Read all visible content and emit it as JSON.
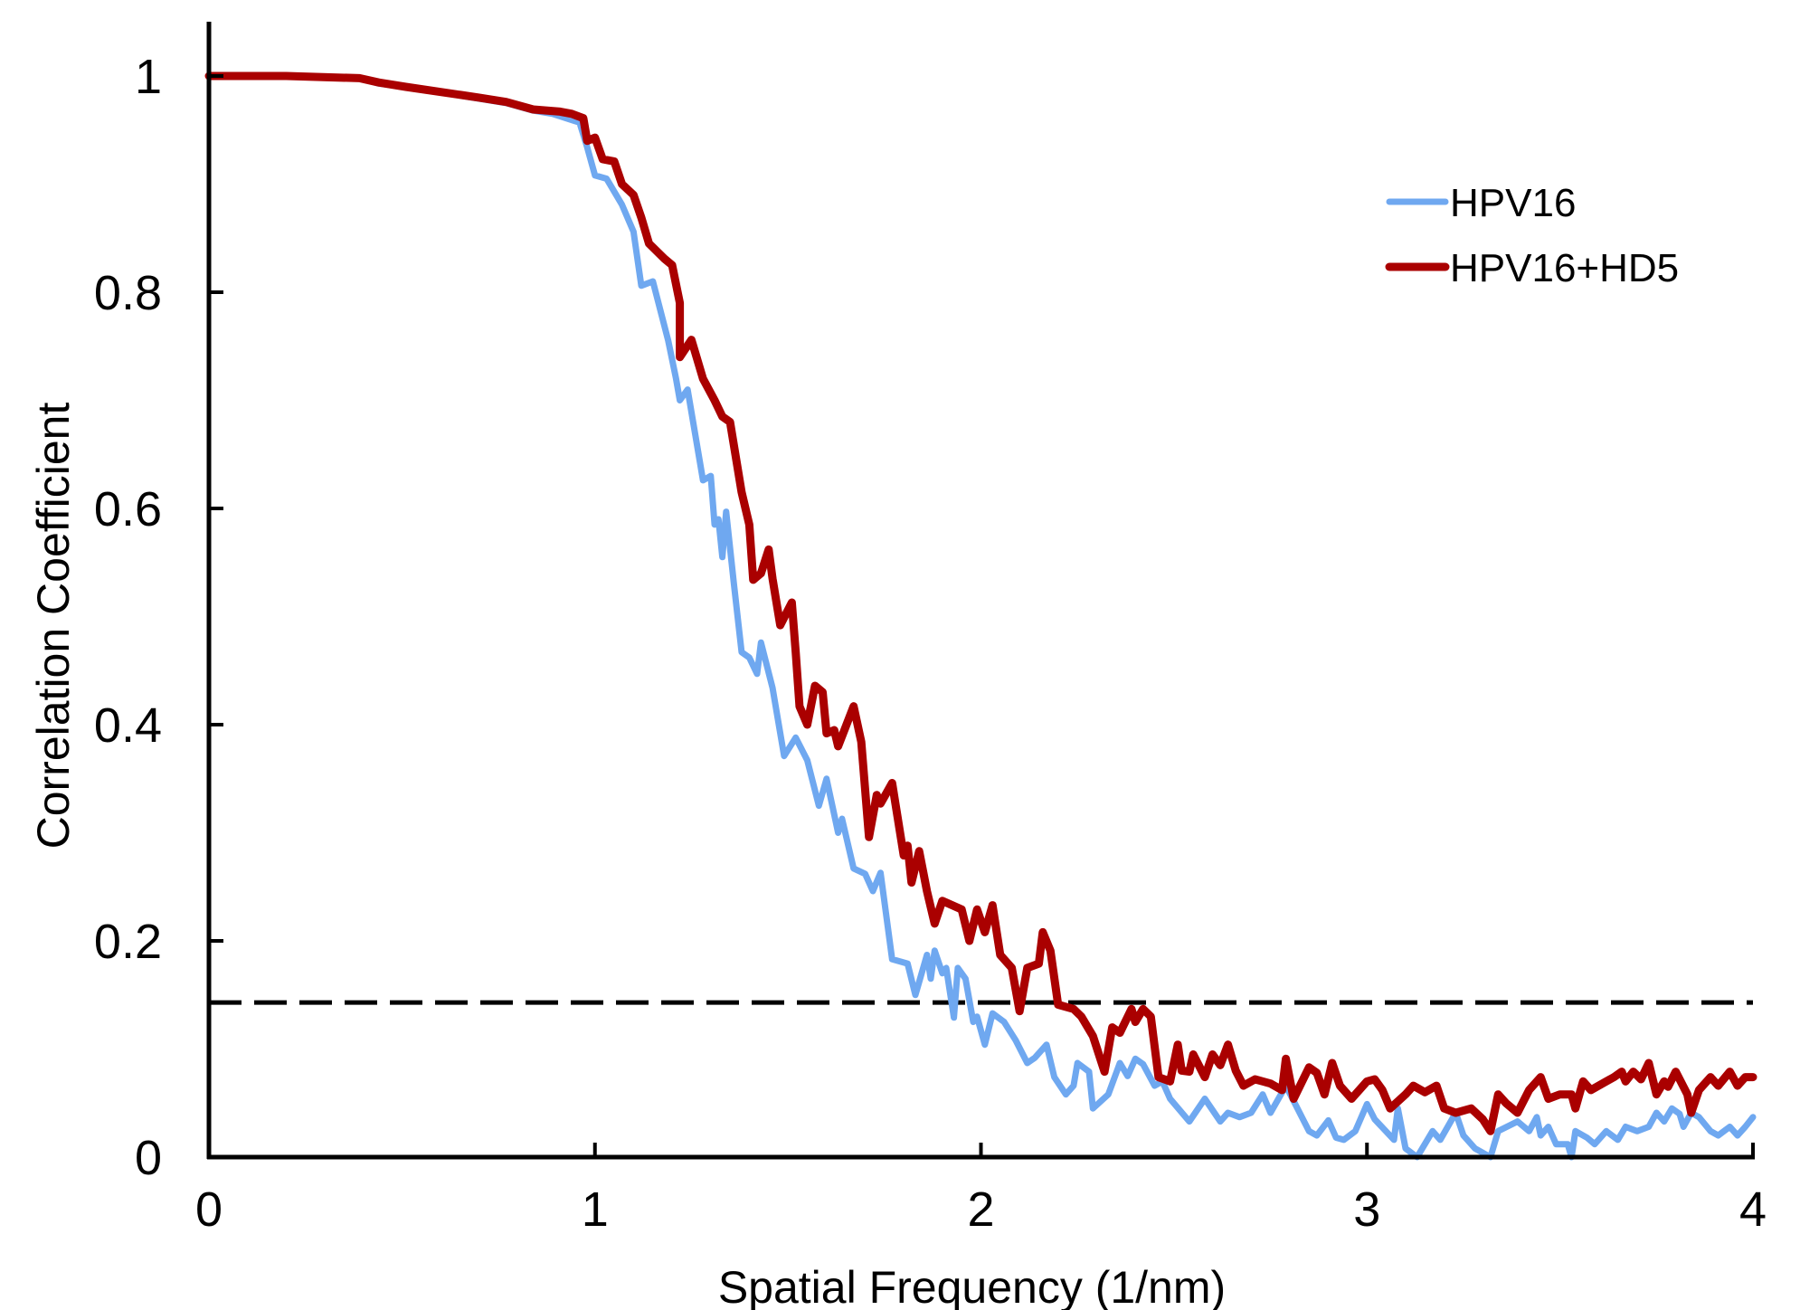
{
  "chart_data": {
    "type": "line",
    "title": "",
    "xlabel": "Spatial Frequency (1/nm)",
    "ylabel": "Correlation Coefficient",
    "xlim": [
      0,
      4
    ],
    "ylim": [
      0,
      1
    ],
    "grid": false,
    "legend_position": "top-right",
    "x_ticks": [
      0,
      1,
      2,
      3,
      4
    ],
    "x_tick_labels": [
      "0",
      "1",
      "2",
      "3",
      "4"
    ],
    "y_ticks": [
      0,
      0.2,
      0.4,
      0.6,
      0.8,
      1
    ],
    "y_tick_labels": [
      "0",
      "0.2",
      "0.4",
      "0.6",
      "0.8",
      "1"
    ],
    "threshold": {
      "value": 0.143,
      "style": "dashed",
      "color": "#000000"
    },
    "series": [
      {
        "name": "HPV16",
        "color": "#6fa8f0",
        "x": [
          0,
          0.2,
          0.39,
          0.44,
          0.51,
          0.7,
          0.77,
          0.84,
          0.89,
          0.96,
          0.98,
          1.0,
          1.03,
          1.07,
          1.1,
          1.12,
          1.15,
          1.19,
          1.21,
          1.22,
          1.24,
          1.26,
          1.28,
          1.3,
          1.31,
          1.32,
          1.33,
          1.34,
          1.36,
          1.38,
          1.4,
          1.42,
          1.43,
          1.46,
          1.49,
          1.52,
          1.55,
          1.58,
          1.6,
          1.63,
          1.64,
          1.67,
          1.7,
          1.72,
          1.74,
          1.77,
          1.81,
          1.83,
          1.86,
          1.87,
          1.88,
          1.9,
          1.91,
          1.93,
          1.94,
          1.96,
          1.98,
          1.99,
          2.01,
          2.03,
          2.06,
          2.09,
          2.12,
          2.14,
          2.17,
          2.19,
          2.22,
          2.24,
          2.25,
          2.28,
          2.29,
          2.33,
          2.36,
          2.38,
          2.4,
          2.42,
          2.45,
          2.47,
          2.49,
          2.54,
          2.58,
          2.62,
          2.64,
          2.67,
          2.7,
          2.73,
          2.75,
          2.79,
          2.82,
          2.85,
          2.87,
          2.9,
          2.92,
          2.94,
          2.97,
          3.0,
          3.02,
          3.07,
          3.08,
          3.1,
          3.13,
          3.17,
          3.19,
          3.23,
          3.25,
          3.28,
          3.32,
          3.34,
          3.39,
          3.42,
          3.44,
          3.45,
          3.47,
          3.49,
          3.52,
          3.53,
          3.54,
          3.57,
          3.59,
          3.62,
          3.65,
          3.67,
          3.7,
          3.73,
          3.75,
          3.77,
          3.79,
          3.81,
          3.82,
          3.84,
          3.86,
          3.89,
          3.91,
          3.94,
          3.96,
          3.98,
          4.0
        ],
        "y": [
          1.0,
          1.0,
          0.998,
          0.993,
          0.99,
          0.979,
          0.975,
          0.968,
          0.965,
          0.957,
          0.934,
          0.908,
          0.905,
          0.881,
          0.856,
          0.806,
          0.81,
          0.755,
          0.72,
          0.7,
          0.71,
          0.668,
          0.626,
          0.63,
          0.585,
          0.59,
          0.555,
          0.597,
          0.53,
          0.467,
          0.462,
          0.447,
          0.476,
          0.434,
          0.371,
          0.388,
          0.367,
          0.325,
          0.35,
          0.3,
          0.313,
          0.267,
          0.262,
          0.246,
          0.263,
          0.183,
          0.179,
          0.15,
          0.187,
          0.165,
          0.191,
          0.17,
          0.175,
          0.129,
          0.175,
          0.165,
          0.125,
          0.13,
          0.104,
          0.133,
          0.125,
          0.108,
          0.087,
          0.092,
          0.104,
          0.074,
          0.058,
          0.066,
          0.087,
          0.079,
          0.045,
          0.058,
          0.087,
          0.075,
          0.091,
          0.086,
          0.066,
          0.07,
          0.054,
          0.033,
          0.054,
          0.033,
          0.041,
          0.037,
          0.041,
          0.058,
          0.041,
          0.066,
          0.045,
          0.024,
          0.02,
          0.034,
          0.018,
          0.016,
          0.024,
          0.049,
          0.035,
          0.016,
          0.045,
          0.008,
          0.0,
          0.024,
          0.016,
          0.041,
          0.02,
          0.008,
          0.0,
          0.024,
          0.033,
          0.024,
          0.037,
          0.02,
          0.028,
          0.012,
          0.012,
          0.0,
          0.024,
          0.018,
          0.012,
          0.024,
          0.016,
          0.028,
          0.024,
          0.028,
          0.041,
          0.033,
          0.045,
          0.04,
          0.028,
          0.041,
          0.037,
          0.024,
          0.02,
          0.028,
          0.02,
          0.028,
          0.037
        ]
      },
      {
        "name": "HPV16+HD5",
        "color": "#aa0000",
        "x": [
          0,
          0.2,
          0.39,
          0.44,
          0.51,
          0.7,
          0.77,
          0.84,
          0.91,
          0.94,
          0.97,
          0.98,
          1.0,
          1.02,
          1.05,
          1.07,
          1.1,
          1.12,
          1.14,
          1.18,
          1.2,
          1.22,
          1.22,
          1.25,
          1.28,
          1.31,
          1.33,
          1.35,
          1.38,
          1.4,
          1.41,
          1.43,
          1.45,
          1.46,
          1.48,
          1.51,
          1.52,
          1.53,
          1.55,
          1.57,
          1.59,
          1.6,
          1.62,
          1.63,
          1.67,
          1.69,
          1.71,
          1.73,
          1.74,
          1.77,
          1.8,
          1.81,
          1.82,
          1.84,
          1.86,
          1.88,
          1.9,
          1.95,
          1.97,
          1.99,
          2.01,
          2.03,
          2.05,
          2.08,
          2.1,
          2.12,
          2.15,
          2.16,
          2.18,
          2.2,
          2.24,
          2.26,
          2.29,
          2.32,
          2.34,
          2.36,
          2.39,
          2.4,
          2.42,
          2.44,
          2.46,
          2.49,
          2.51,
          2.52,
          2.54,
          2.55,
          2.58,
          2.6,
          2.62,
          2.64,
          2.66,
          2.68,
          2.71,
          2.73,
          2.75,
          2.78,
          2.79,
          2.81,
          2.85,
          2.87,
          2.89,
          2.91,
          2.93,
          2.96,
          3.0,
          3.02,
          3.04,
          3.06,
          3.1,
          3.12,
          3.15,
          3.18,
          3.2,
          3.23,
          3.27,
          3.3,
          3.32,
          3.34,
          3.36,
          3.39,
          3.42,
          3.45,
          3.47,
          3.5,
          3.53,
          3.54,
          3.56,
          3.58,
          3.62,
          3.64,
          3.66,
          3.67,
          3.69,
          3.71,
          3.73,
          3.75,
          3.77,
          3.78,
          3.8,
          3.83,
          3.84,
          3.86,
          3.89,
          3.91,
          3.94,
          3.96,
          3.98,
          4.0
        ],
        "y": [
          1.0,
          1.0,
          0.998,
          0.994,
          0.99,
          0.98,
          0.976,
          0.969,
          0.967,
          0.965,
          0.961,
          0.94,
          0.943,
          0.923,
          0.921,
          0.9,
          0.89,
          0.869,
          0.845,
          0.831,
          0.825,
          0.79,
          0.74,
          0.756,
          0.72,
          0.7,
          0.685,
          0.68,
          0.615,
          0.585,
          0.534,
          0.54,
          0.562,
          0.535,
          0.492,
          0.513,
          0.467,
          0.417,
          0.4,
          0.436,
          0.43,
          0.392,
          0.395,
          0.38,
          0.417,
          0.384,
          0.296,
          0.335,
          0.327,
          0.346,
          0.279,
          0.288,
          0.254,
          0.283,
          0.246,
          0.216,
          0.237,
          0.229,
          0.2,
          0.229,
          0.208,
          0.233,
          0.187,
          0.175,
          0.135,
          0.175,
          0.179,
          0.208,
          0.191,
          0.141,
          0.137,
          0.13,
          0.112,
          0.079,
          0.12,
          0.115,
          0.137,
          0.125,
          0.137,
          0.13,
          0.074,
          0.07,
          0.104,
          0.08,
          0.079,
          0.095,
          0.074,
          0.095,
          0.085,
          0.104,
          0.08,
          0.066,
          0.072,
          0.07,
          0.068,
          0.062,
          0.091,
          0.054,
          0.083,
          0.078,
          0.058,
          0.087,
          0.066,
          0.054,
          0.07,
          0.072,
          0.062,
          0.045,
          0.058,
          0.066,
          0.06,
          0.066,
          0.045,
          0.041,
          0.045,
          0.035,
          0.024,
          0.058,
          0.05,
          0.041,
          0.062,
          0.074,
          0.054,
          0.058,
          0.058,
          0.045,
          0.07,
          0.062,
          0.07,
          0.074,
          0.079,
          0.07,
          0.079,
          0.072,
          0.087,
          0.058,
          0.07,
          0.065,
          0.079,
          0.058,
          0.041,
          0.062,
          0.074,
          0.066,
          0.079,
          0.066,
          0.074,
          0.074
        ]
      }
    ]
  }
}
